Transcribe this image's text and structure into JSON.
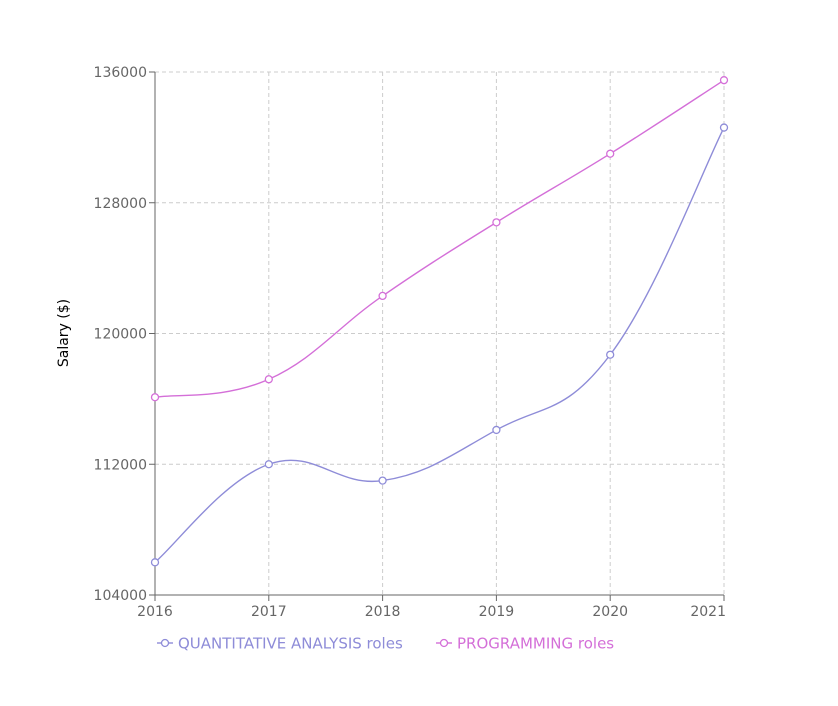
{
  "chart_data": {
    "type": "line",
    "x": [
      "2016",
      "2017",
      "2018",
      "2019",
      "2020",
      "2021"
    ],
    "xlim": [
      2016,
      2021
    ],
    "ylabel": "Salary ($)",
    "ylim": [
      104000,
      136000
    ],
    "yticks": [
      "104000",
      "112000",
      "120000",
      "128000",
      "136000"
    ],
    "grid": true,
    "curve": "smooth",
    "legend_position": "bottom-center",
    "series": [
      {
        "name": "QUANTITATIVE ANALYSIS roles",
        "color": "#8e8cd8",
        "values": [
          106000,
          112000,
          111000,
          114100,
          118700,
          132600
        ]
      },
      {
        "name": "PROGRAMMING roles",
        "color": "#d46fd8",
        "values": [
          116100,
          117200,
          122300,
          126800,
          131000,
          135500
        ]
      }
    ]
  }
}
